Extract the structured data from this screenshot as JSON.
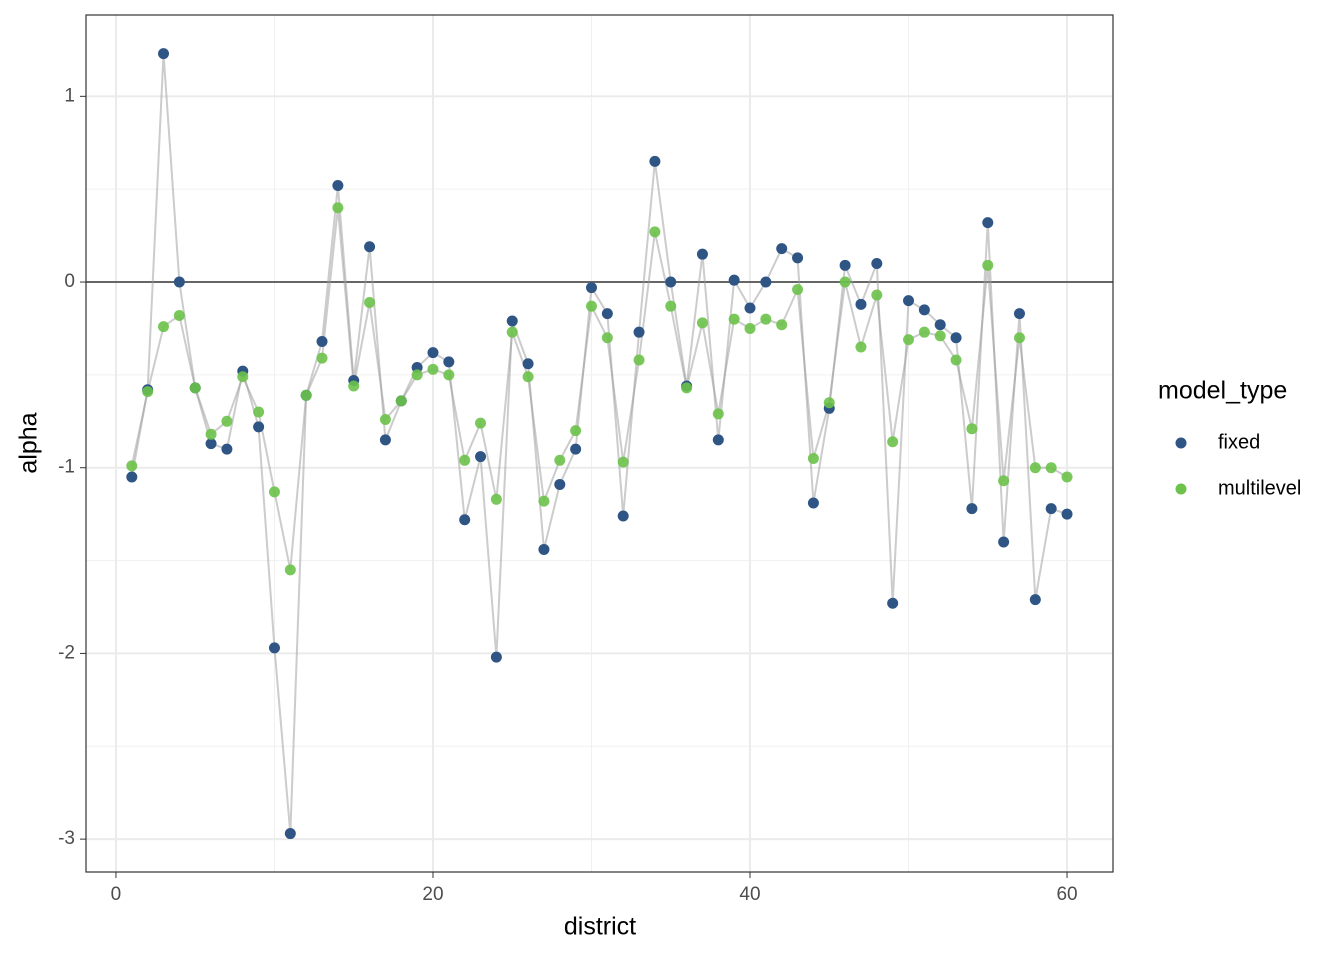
{
  "chart_data": {
    "type": "scatter",
    "x_label": "district",
    "y_label": "alpha",
    "legend_title": "model_type",
    "legend": "right",
    "grid": true,
    "line_color": "#999999",
    "hline": 0,
    "x": [
      1,
      2,
      3,
      4,
      5,
      6,
      7,
      8,
      9,
      10,
      11,
      12,
      13,
      14,
      15,
      16,
      17,
      18,
      19,
      20,
      21,
      22,
      23,
      24,
      25,
      26,
      27,
      28,
      29,
      30,
      31,
      32,
      33,
      34,
      35,
      36,
      37,
      38,
      39,
      40,
      41,
      42,
      43,
      44,
      45,
      46,
      47,
      48,
      49,
      50,
      51,
      52,
      53,
      54,
      55,
      56,
      57,
      58,
      59,
      60
    ],
    "series": [
      {
        "name": "fixed",
        "color": "#2f5585",
        "values": [
          -1.05,
          -0.58,
          1.23,
          0.0,
          -0.57,
          -0.87,
          -0.9,
          -0.48,
          -0.78,
          -1.97,
          -2.97,
          -0.61,
          -0.32,
          0.52,
          -0.53,
          0.19,
          -0.85,
          -0.64,
          -0.46,
          -0.38,
          -0.43,
          -1.28,
          -0.94,
          -2.02,
          -0.21,
          -0.44,
          -1.44,
          -1.09,
          -0.9,
          -0.03,
          -0.17,
          -1.26,
          -0.27,
          0.65,
          0.0,
          -0.56,
          0.15,
          -0.85,
          0.01,
          -0.14,
          0.0,
          0.18,
          0.13,
          -1.19,
          -0.68,
          0.09,
          -0.12,
          0.1,
          -1.73,
          -0.1,
          -0.15,
          -0.23,
          -0.3,
          -1.22,
          0.32,
          -1.4,
          -0.17,
          -1.71,
          -1.22,
          -1.25
        ]
      },
      {
        "name": "multilevel",
        "color": "#6cc24a",
        "values": [
          -0.99,
          -0.59,
          -0.24,
          -0.18,
          -0.57,
          -0.82,
          -0.75,
          -0.51,
          -0.7,
          -1.13,
          -1.55,
          -0.61,
          -0.41,
          0.4,
          -0.56,
          -0.11,
          -0.74,
          -0.64,
          -0.5,
          -0.47,
          -0.5,
          -0.96,
          -0.76,
          -1.17,
          -0.27,
          -0.51,
          -1.18,
          -0.96,
          -0.8,
          -0.13,
          -0.3,
          -0.97,
          -0.42,
          0.27,
          -0.13,
          -0.57,
          -0.22,
          -0.71,
          -0.2,
          -0.25,
          -0.2,
          -0.23,
          -0.04,
          -0.95,
          -0.65,
          0.0,
          -0.35,
          -0.07,
          -0.86,
          -0.31,
          -0.27,
          -0.29,
          -0.42,
          -0.79,
          0.09,
          -1.07,
          -0.3,
          -1.0,
          -1.0,
          -1.05
        ]
      }
    ],
    "xlim": [
      -1.89,
      62.9
    ],
    "ylim": [
      -3.177,
      1.438
    ],
    "xticks": [
      0,
      20,
      40,
      60
    ],
    "yticks": [
      -3,
      -2,
      -1,
      0,
      1
    ],
    "x_minor_ticks": [
      10,
      30,
      50
    ],
    "y_minor_ticks": [
      -2.5,
      -1.5,
      -0.5,
      0.5
    ]
  }
}
